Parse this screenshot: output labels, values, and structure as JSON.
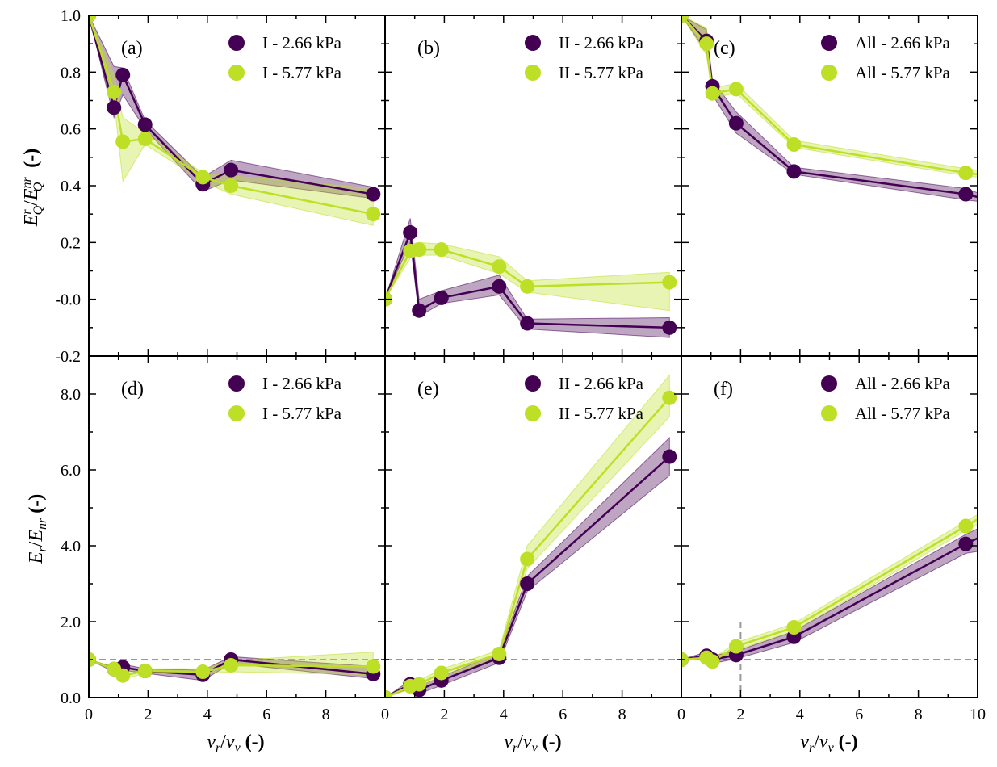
{
  "colors": {
    "series_a": "#440154",
    "series_b": "#bddf26",
    "ref_line": "#999999",
    "axis": "#000000"
  },
  "x_tick_labels": [
    "0",
    "2",
    "4",
    "6",
    "8",
    "10"
  ],
  "y_tick_labels_top": [
    "1.0",
    "0.8",
    "0.6",
    "0.4",
    "0.2",
    "-0.0",
    "-0.2"
  ],
  "y_tick_labels_bottom": [
    "8.0",
    "6.0",
    "4.0",
    "2.0",
    "0.0"
  ],
  "axis_labels": {
    "x": {
      "var1": "v",
      "sub1": "r",
      "slash": "/",
      "var2": "v",
      "sub2": "v",
      "unit": "(-)"
    },
    "y_top": {
      "var": "E",
      "sub1": "Q",
      "sup1": "r",
      "slash": "/",
      "var2": "E",
      "sub2": "Q",
      "sup2": "nr",
      "unit": "(-)"
    },
    "y_bottom": {
      "var": "E",
      "sub1": "r",
      "slash": "/",
      "var2": "E",
      "sub2": "nr",
      "unit": "(-)"
    }
  },
  "chart_data": [
    {
      "type": "line",
      "panel": "(a)",
      "xlim": [
        0,
        10
      ],
      "ylim": [
        -0.2,
        1.0
      ],
      "reference_line": null,
      "series": [
        {
          "name": "I - 2.66 kPa",
          "x": [
            0,
            0.85,
            1.15,
            1.9,
            3.85,
            4.8,
            9.6
          ],
          "y": [
            1.0,
            0.675,
            0.79,
            0.615,
            0.405,
            0.455,
            0.37
          ],
          "lower": [
            1.0,
            0.64,
            0.72,
            0.6,
            0.38,
            0.42,
            0.355
          ],
          "upper": [
            1.0,
            0.82,
            0.815,
            0.63,
            0.43,
            0.49,
            0.395
          ]
        },
        {
          "name": "I - 5.77 kPa",
          "x": [
            0,
            0.85,
            1.15,
            1.9,
            3.85,
            4.8,
            9.6
          ],
          "y": [
            1.0,
            0.73,
            0.555,
            0.565,
            0.43,
            0.4,
            0.3
          ],
          "lower": [
            1.0,
            0.7,
            0.415,
            0.545,
            0.415,
            0.37,
            0.26
          ],
          "upper": [
            1.0,
            0.79,
            0.64,
            0.585,
            0.445,
            0.435,
            0.39
          ]
        }
      ]
    },
    {
      "type": "line",
      "panel": "(b)",
      "xlim": [
        0,
        10
      ],
      "ylim": [
        -0.2,
        1.0
      ],
      "reference_line": null,
      "series": [
        {
          "name": "II - 2.66 kPa",
          "x": [
            0,
            0.85,
            1.15,
            1.9,
            3.85,
            4.8,
            9.6
          ],
          "y": [
            0.0,
            0.235,
            -0.04,
            0.005,
            0.045,
            -0.085,
            -0.1
          ],
          "lower": [
            0.0,
            0.2,
            -0.06,
            -0.015,
            0.015,
            -0.105,
            -0.135
          ],
          "upper": [
            0.0,
            0.285,
            0.0,
            0.03,
            0.085,
            -0.07,
            -0.065
          ]
        },
        {
          "name": "II - 5.77 kPa",
          "x": [
            0,
            0.85,
            1.15,
            1.9,
            3.85,
            4.8,
            9.6
          ],
          "y": [
            0.0,
            0.17,
            0.175,
            0.175,
            0.115,
            0.045,
            0.06
          ],
          "lower": [
            0.0,
            0.145,
            0.155,
            0.155,
            0.09,
            0.025,
            -0.04
          ],
          "upper": [
            0.0,
            0.195,
            0.2,
            0.195,
            0.15,
            0.065,
            0.095
          ]
        }
      ]
    },
    {
      "type": "line",
      "panel": "(c)",
      "xlim": [
        0,
        10
      ],
      "ylim": [
        -0.2,
        1.0
      ],
      "reference_line": null,
      "series": [
        {
          "name": "All - 2.66 kPa",
          "x": [
            0,
            0.85,
            1.05,
            1.85,
            3.8,
            9.6,
            10.0
          ],
          "y": [
            1.0,
            0.91,
            0.75,
            0.62,
            0.45,
            0.37,
            0.36
          ],
          "lower": [
            1.0,
            0.87,
            0.72,
            0.585,
            0.44,
            0.35,
            0.345
          ],
          "upper": [
            1.0,
            0.95,
            0.77,
            0.66,
            0.465,
            0.39,
            0.375
          ]
        },
        {
          "name": "All - 5.77 kPa",
          "x": [
            0,
            0.85,
            1.05,
            1.85,
            3.8,
            9.6,
            10.0
          ],
          "y": [
            1.0,
            0.9,
            0.725,
            0.74,
            0.545,
            0.445,
            0.44
          ],
          "lower": [
            1.0,
            0.86,
            0.71,
            0.725,
            0.535,
            0.435,
            0.43
          ],
          "upper": [
            1.0,
            0.955,
            0.745,
            0.76,
            0.56,
            0.46,
            0.455
          ]
        }
      ]
    },
    {
      "type": "line",
      "panel": "(d)",
      "xlim": [
        0,
        10
      ],
      "ylim": [
        0.0,
        9.0
      ],
      "reference_line": {
        "y": 1.0
      },
      "series": [
        {
          "name": "I - 2.66 kPa",
          "x": [
            0,
            0.85,
            1.15,
            1.9,
            3.85,
            4.8,
            9.6
          ],
          "y": [
            1.0,
            0.75,
            0.8,
            0.7,
            0.6,
            1.0,
            0.62
          ],
          "lower": [
            1.0,
            0.68,
            0.72,
            0.64,
            0.45,
            0.9,
            0.5
          ],
          "upper": [
            1.0,
            0.8,
            0.88,
            0.76,
            0.72,
            1.08,
            0.82
          ]
        },
        {
          "name": "I - 5.77 kPa",
          "x": [
            0,
            0.85,
            1.15,
            1.9,
            3.85,
            4.8,
            9.6
          ],
          "y": [
            1.0,
            0.75,
            0.58,
            0.7,
            0.68,
            0.85,
            0.82
          ],
          "lower": [
            1.0,
            0.7,
            0.48,
            0.64,
            0.62,
            0.68,
            0.6
          ],
          "upper": [
            1.0,
            0.82,
            0.72,
            0.76,
            0.76,
            0.98,
            1.2
          ]
        }
      ]
    },
    {
      "type": "line",
      "panel": "(e)",
      "xlim": [
        0,
        10
      ],
      "ylim": [
        0.0,
        9.0
      ],
      "reference_line": {
        "y": 1.0
      },
      "series": [
        {
          "name": "II - 2.66 kPa",
          "x": [
            0,
            0.85,
            1.15,
            1.9,
            3.85,
            4.8,
            9.6
          ],
          "y": [
            0.0,
            0.35,
            0.2,
            0.45,
            1.05,
            3.0,
            6.35
          ],
          "lower": [
            0.0,
            0.25,
            0.1,
            0.32,
            0.92,
            2.8,
            5.85
          ],
          "upper": [
            0.0,
            0.45,
            0.3,
            0.55,
            1.18,
            3.2,
            6.85
          ]
        },
        {
          "name": "II - 5.77 kPa",
          "x": [
            0,
            0.85,
            1.15,
            1.9,
            3.85,
            4.8,
            9.6
          ],
          "y": [
            0.0,
            0.3,
            0.35,
            0.65,
            1.15,
            3.65,
            7.9
          ],
          "lower": [
            0.0,
            0.22,
            0.28,
            0.55,
            1.05,
            3.4,
            7.4
          ],
          "upper": [
            0.0,
            0.4,
            0.45,
            0.75,
            1.25,
            4.0,
            8.5
          ]
        }
      ]
    },
    {
      "type": "line",
      "panel": "(f)",
      "xlim": [
        0,
        10
      ],
      "ylim": [
        0.0,
        9.0
      ],
      "reference_line": {
        "y": 1.0,
        "x": 2.0
      },
      "series": [
        {
          "name": "All - 2.66 kPa",
          "x": [
            0,
            0.85,
            1.05,
            1.85,
            3.8,
            9.6,
            10.0
          ],
          "y": [
            1.0,
            1.1,
            1.0,
            1.12,
            1.6,
            4.05,
            4.2
          ],
          "lower": [
            1.0,
            1.0,
            0.9,
            1.02,
            1.45,
            3.8,
            3.85
          ],
          "upper": [
            1.0,
            1.2,
            1.1,
            1.22,
            1.75,
            4.3,
            4.45
          ]
        },
        {
          "name": "All - 5.77 kPa",
          "x": [
            0,
            0.85,
            1.05,
            1.85,
            3.8,
            9.6,
            10.0
          ],
          "y": [
            1.0,
            1.05,
            0.95,
            1.35,
            1.85,
            4.52,
            4.7
          ],
          "lower": [
            1.0,
            0.98,
            0.88,
            1.25,
            1.75,
            4.4,
            4.55
          ],
          "upper": [
            1.0,
            1.12,
            1.02,
            1.45,
            1.95,
            4.65,
            4.82
          ]
        }
      ]
    }
  ]
}
